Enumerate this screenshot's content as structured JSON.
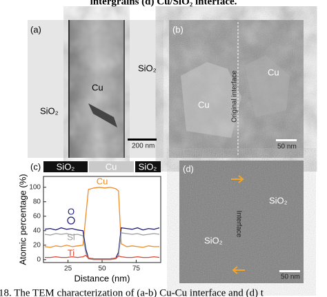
{
  "header_fragment": "intergrains (d) Cu/SiO₂ interface.",
  "panels": {
    "a": {
      "label": "(a)",
      "left": "SiO₂",
      "center": "Cu",
      "right": "SiO₂",
      "scale": "200 nm"
    },
    "b": {
      "label": "(b)",
      "grain1": "Cu",
      "grain2": "Cu",
      "interface": "Original interface",
      "scale": "50 nm"
    },
    "c": {
      "label": "(c)",
      "strip": [
        "SiO₂",
        "Cu",
        "SiO₂"
      ]
    },
    "d": {
      "label": "(d)",
      "top": "SiO₂",
      "bottom": "SiO₂",
      "interface": "Interface",
      "scale": "50 nm"
    }
  },
  "chart_data": {
    "type": "line",
    "x_label": "Distance (nm)",
    "y_label": "Atomic percentage (%)",
    "x": [
      8,
      12,
      16,
      20,
      24,
      28,
      32,
      36,
      38,
      40,
      44,
      48,
      52,
      56,
      60,
      62,
      64,
      68,
      72,
      76,
      80,
      84,
      88,
      92
    ],
    "series": [
      {
        "name": "Cu",
        "color": "#f08a24",
        "values": [
          18,
          17,
          19,
          18,
          20,
          18,
          19,
          20,
          60,
          97,
          99,
          100,
          99,
          100,
          98,
          95,
          22,
          18,
          19,
          18,
          17,
          19,
          18,
          18
        ]
      },
      {
        "name": "O",
        "color": "#1c1c78",
        "values": [
          42,
          43,
          41,
          44,
          42,
          43,
          41,
          40,
          15,
          2,
          1,
          1,
          1,
          1,
          2,
          10,
          44,
          43,
          42,
          44,
          41,
          43,
          42,
          44
        ]
      },
      {
        "name": "Si",
        "color": "#9a9a9a",
        "values": [
          35,
          34,
          36,
          35,
          36,
          34,
          35,
          33,
          10,
          1,
          0,
          0,
          0,
          0,
          1,
          5,
          37,
          36,
          35,
          36,
          34,
          35,
          36,
          35
        ]
      },
      {
        "name": "Ti",
        "color": "#e0402a",
        "values": [
          3,
          3,
          4,
          3,
          3,
          4,
          3,
          4,
          6,
          2,
          1,
          1,
          1,
          1,
          2,
          5,
          4,
          3,
          3,
          4,
          3,
          3,
          4,
          3
        ]
      }
    ],
    "xlim": [
      7,
      93
    ],
    "ylim": [
      -4,
      115
    ],
    "xticks": [
      25,
      50,
      75
    ],
    "yticks": [
      0,
      20,
      40,
      60,
      80,
      100
    ],
    "grid": false
  },
  "caption": "18. The TEM characterization of (a-b) Cu-Cu interface and (d) t"
}
